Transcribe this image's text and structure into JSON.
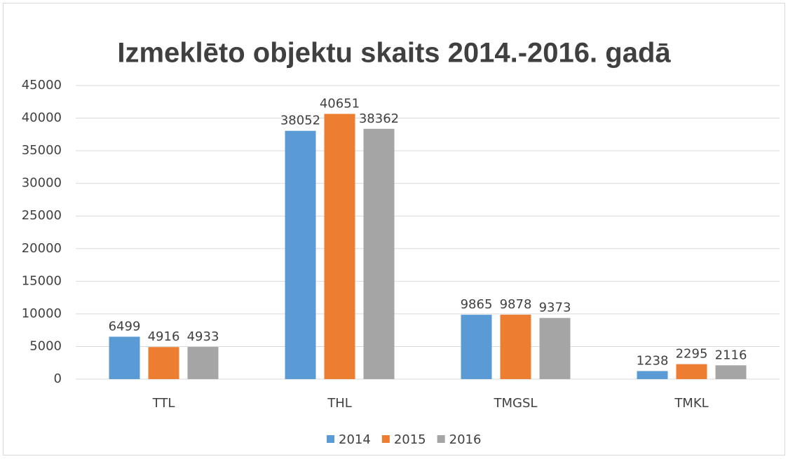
{
  "chart_data": {
    "type": "bar",
    "title": "Izmeklēto objektu skaits 2014.-2016. gadā",
    "categories": [
      "TTL",
      "THL",
      "TMGSL",
      "TMKL"
    ],
    "series": [
      {
        "name": "2014",
        "color": "#5b9bd5",
        "values": [
          6499,
          38052,
          9865,
          1238
        ]
      },
      {
        "name": "2015",
        "color": "#ed7d31",
        "values": [
          4916,
          40651,
          9878,
          2295
        ]
      },
      {
        "name": "2016",
        "color": "#a5a5a5",
        "values": [
          4933,
          38362,
          9373,
          2116
        ]
      }
    ],
    "ylim": [
      0,
      45000
    ],
    "yticks": [
      0,
      5000,
      10000,
      15000,
      20000,
      25000,
      30000,
      35000,
      40000,
      45000
    ],
    "grid": true,
    "legend": "bottom"
  }
}
